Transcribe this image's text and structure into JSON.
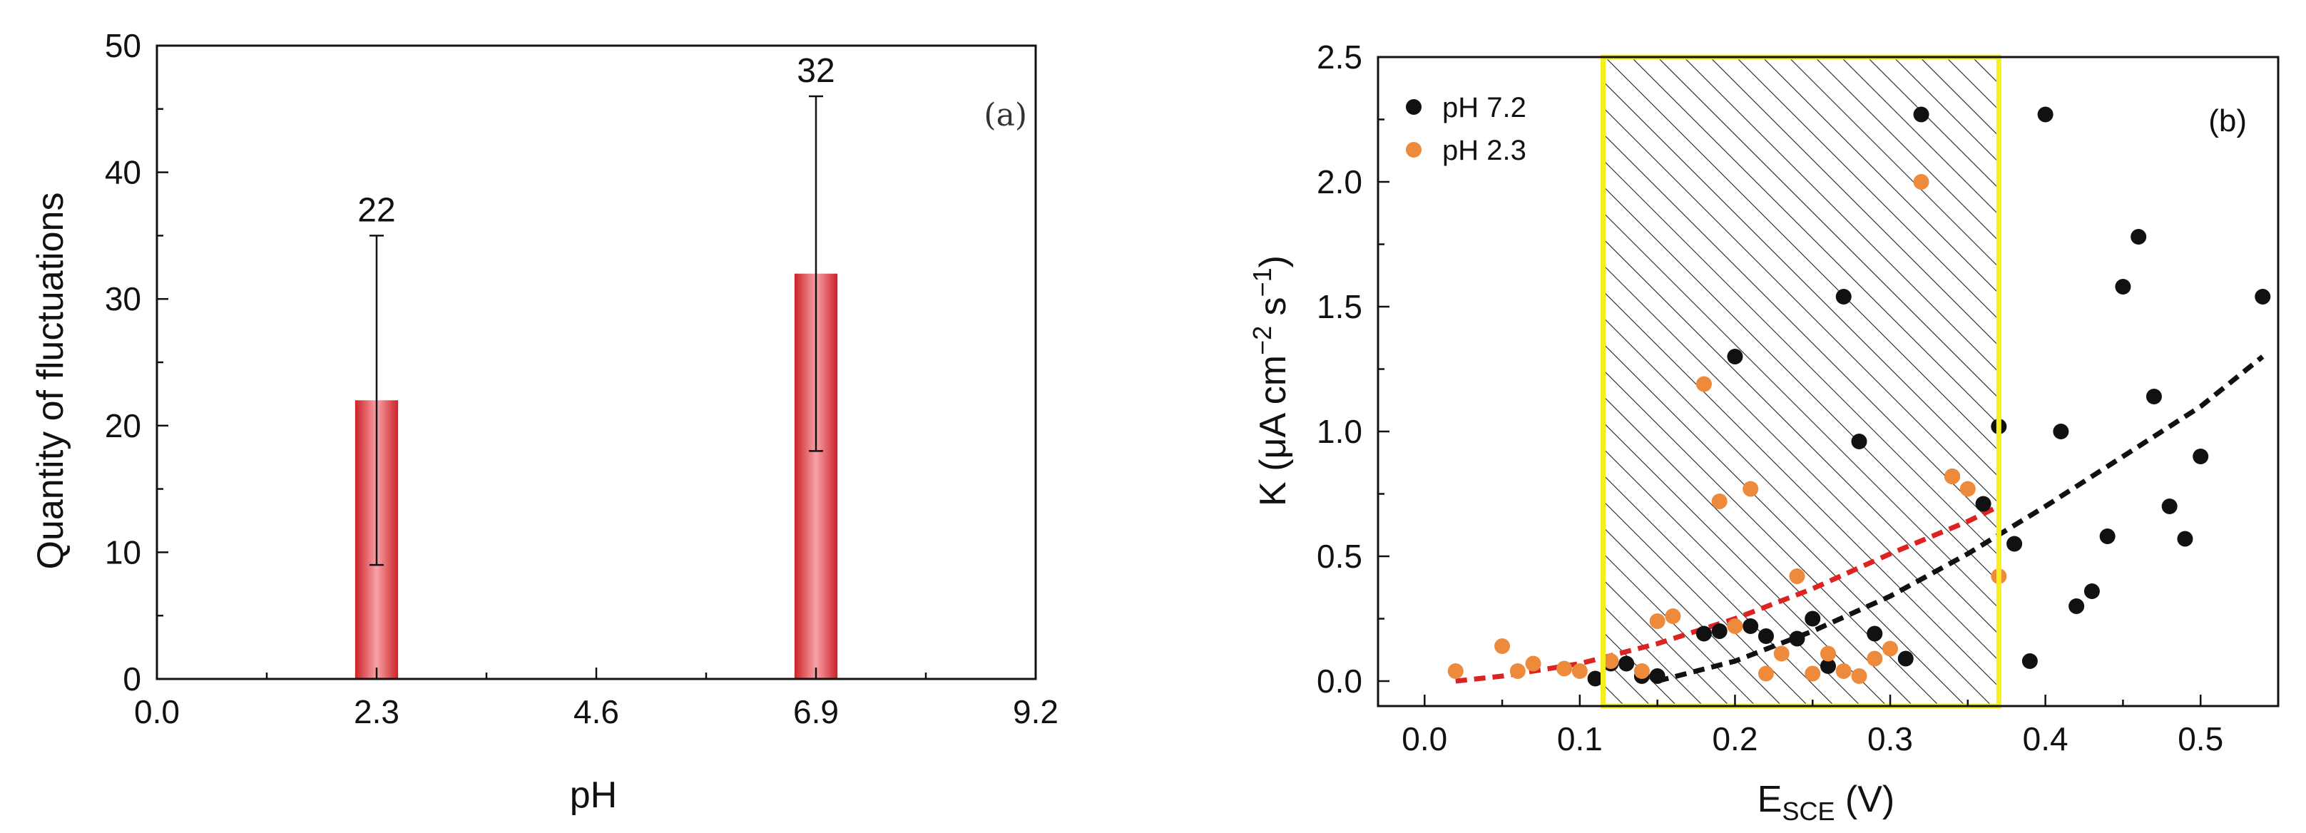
{
  "figure": {
    "panel_a": {
      "panel_label": "(a)",
      "fill_color": "#cc2229",
      "highlight_color": "#f7a2a6"
    },
    "panel_b": {
      "panel_label": "(b)",
      "highlight_box_color": "#f5ef1f",
      "highlight_box_xrange": [
        0.115,
        0.37
      ]
    }
  },
  "chart_data": [
    {
      "type": "bar",
      "panel": "(a)",
      "title": "",
      "xlabel": "pH",
      "ylabel": "Quantity of fluctuations",
      "xlim": [
        0.0,
        9.2
      ],
      "ylim": [
        0,
        50
      ],
      "xticks": [
        0.0,
        2.3,
        4.6,
        6.9,
        9.2
      ],
      "xtick_labels": [
        "0.0",
        "2.3",
        "4.6",
        "6.9",
        "9.2"
      ],
      "yticks": [
        0,
        10,
        20,
        30,
        40,
        50
      ],
      "ytick_labels": [
        "0",
        "10",
        "20",
        "30",
        "40",
        "50"
      ],
      "bar_width": 0.45,
      "categories": [
        "2.3",
        "6.9"
      ],
      "x": [
        2.3,
        6.9
      ],
      "values": [
        22,
        32
      ],
      "error_low": [
        9,
        18
      ],
      "error_high": [
        35,
        46
      ],
      "data_labels": [
        "22",
        "32"
      ]
    },
    {
      "type": "scatter",
      "panel": "(b)",
      "title": "",
      "xlabel": "E",
      "xlabel_sub": "SCE",
      "xlabel_unit": " (V)",
      "ylabel": "K (μA cm",
      "ylabel_sup1": "−2",
      "ylabel_mid": " s",
      "ylabel_sup2": "−1",
      "ylabel_end": ")",
      "xlim": [
        -0.03,
        0.55
      ],
      "ylim": [
        -0.1,
        2.5
      ],
      "xticks": [
        0.0,
        0.1,
        0.2,
        0.3,
        0.4,
        0.5
      ],
      "xtick_labels": [
        "0.0",
        "0.1",
        "0.2",
        "0.3",
        "0.4",
        "0.5"
      ],
      "yticks": [
        0.0,
        0.5,
        1.0,
        1.5,
        2.0,
        2.5
      ],
      "ytick_labels": [
        "0.0",
        "0.5",
        "1.0",
        "1.5",
        "2.0",
        "2.5"
      ],
      "legend_position": "top-left",
      "series": [
        {
          "name": "pH 7.2",
          "color": "#111111",
          "fit_color": "#111111",
          "points": [
            [
              0.11,
              0.01
            ],
            [
              0.12,
              0.07
            ],
            [
              0.13,
              0.07
            ],
            [
              0.14,
              0.02
            ],
            [
              0.15,
              0.02
            ],
            [
              0.18,
              0.19
            ],
            [
              0.19,
              0.2
            ],
            [
              0.2,
              1.3
            ],
            [
              0.21,
              0.22
            ],
            [
              0.22,
              0.18
            ],
            [
              0.24,
              0.17
            ],
            [
              0.25,
              0.25
            ],
            [
              0.26,
              0.06
            ],
            [
              0.27,
              1.54
            ],
            [
              0.28,
              0.96
            ],
            [
              0.29,
              0.19
            ],
            [
              0.31,
              0.09
            ],
            [
              0.32,
              2.27
            ],
            [
              0.34,
              0.82
            ],
            [
              0.36,
              0.71
            ],
            [
              0.37,
              1.02
            ],
            [
              0.38,
              0.55
            ],
            [
              0.39,
              0.08
            ],
            [
              0.4,
              2.27
            ],
            [
              0.41,
              1.0
            ],
            [
              0.42,
              0.3
            ],
            [
              0.43,
              0.36
            ],
            [
              0.44,
              0.58
            ],
            [
              0.45,
              1.58
            ],
            [
              0.46,
              1.78
            ],
            [
              0.47,
              1.14
            ],
            [
              0.48,
              0.7
            ],
            [
              0.49,
              0.57
            ],
            [
              0.5,
              0.9
            ],
            [
              0.54,
              1.54
            ]
          ],
          "fit": [
            [
              0.15,
              0.0
            ],
            [
              0.2,
              0.08
            ],
            [
              0.25,
              0.2
            ],
            [
              0.3,
              0.34
            ],
            [
              0.35,
              0.51
            ],
            [
              0.4,
              0.7
            ],
            [
              0.45,
              0.9
            ],
            [
              0.5,
              1.1
            ],
            [
              0.54,
              1.3
            ]
          ]
        },
        {
          "name": "pH 2.3",
          "color": "#ee8a3c",
          "fit_color": "#dd2222",
          "points": [
            [
              0.02,
              0.04
            ],
            [
              0.05,
              0.14
            ],
            [
              0.06,
              0.04
            ],
            [
              0.07,
              0.07
            ],
            [
              0.09,
              0.05
            ],
            [
              0.1,
              0.04
            ],
            [
              0.12,
              0.08
            ],
            [
              0.14,
              0.04
            ],
            [
              0.15,
              0.24
            ],
            [
              0.16,
              0.26
            ],
            [
              0.18,
              1.19
            ],
            [
              0.19,
              0.72
            ],
            [
              0.2,
              0.22
            ],
            [
              0.21,
              0.77
            ],
            [
              0.22,
              0.03
            ],
            [
              0.23,
              0.11
            ],
            [
              0.24,
              0.42
            ],
            [
              0.25,
              0.03
            ],
            [
              0.26,
              0.11
            ],
            [
              0.27,
              0.04
            ],
            [
              0.28,
              0.02
            ],
            [
              0.29,
              0.09
            ],
            [
              0.3,
              0.13
            ],
            [
              0.32,
              2.0
            ],
            [
              0.34,
              0.82
            ],
            [
              0.35,
              0.77
            ],
            [
              0.37,
              0.42
            ]
          ],
          "fit": [
            [
              0.02,
              0.0
            ],
            [
              0.05,
              0.02
            ],
            [
              0.1,
              0.07
            ],
            [
              0.15,
              0.15
            ],
            [
              0.2,
              0.25
            ],
            [
              0.25,
              0.37
            ],
            [
              0.3,
              0.51
            ],
            [
              0.35,
              0.64
            ],
            [
              0.37,
              0.7
            ]
          ]
        }
      ]
    }
  ]
}
